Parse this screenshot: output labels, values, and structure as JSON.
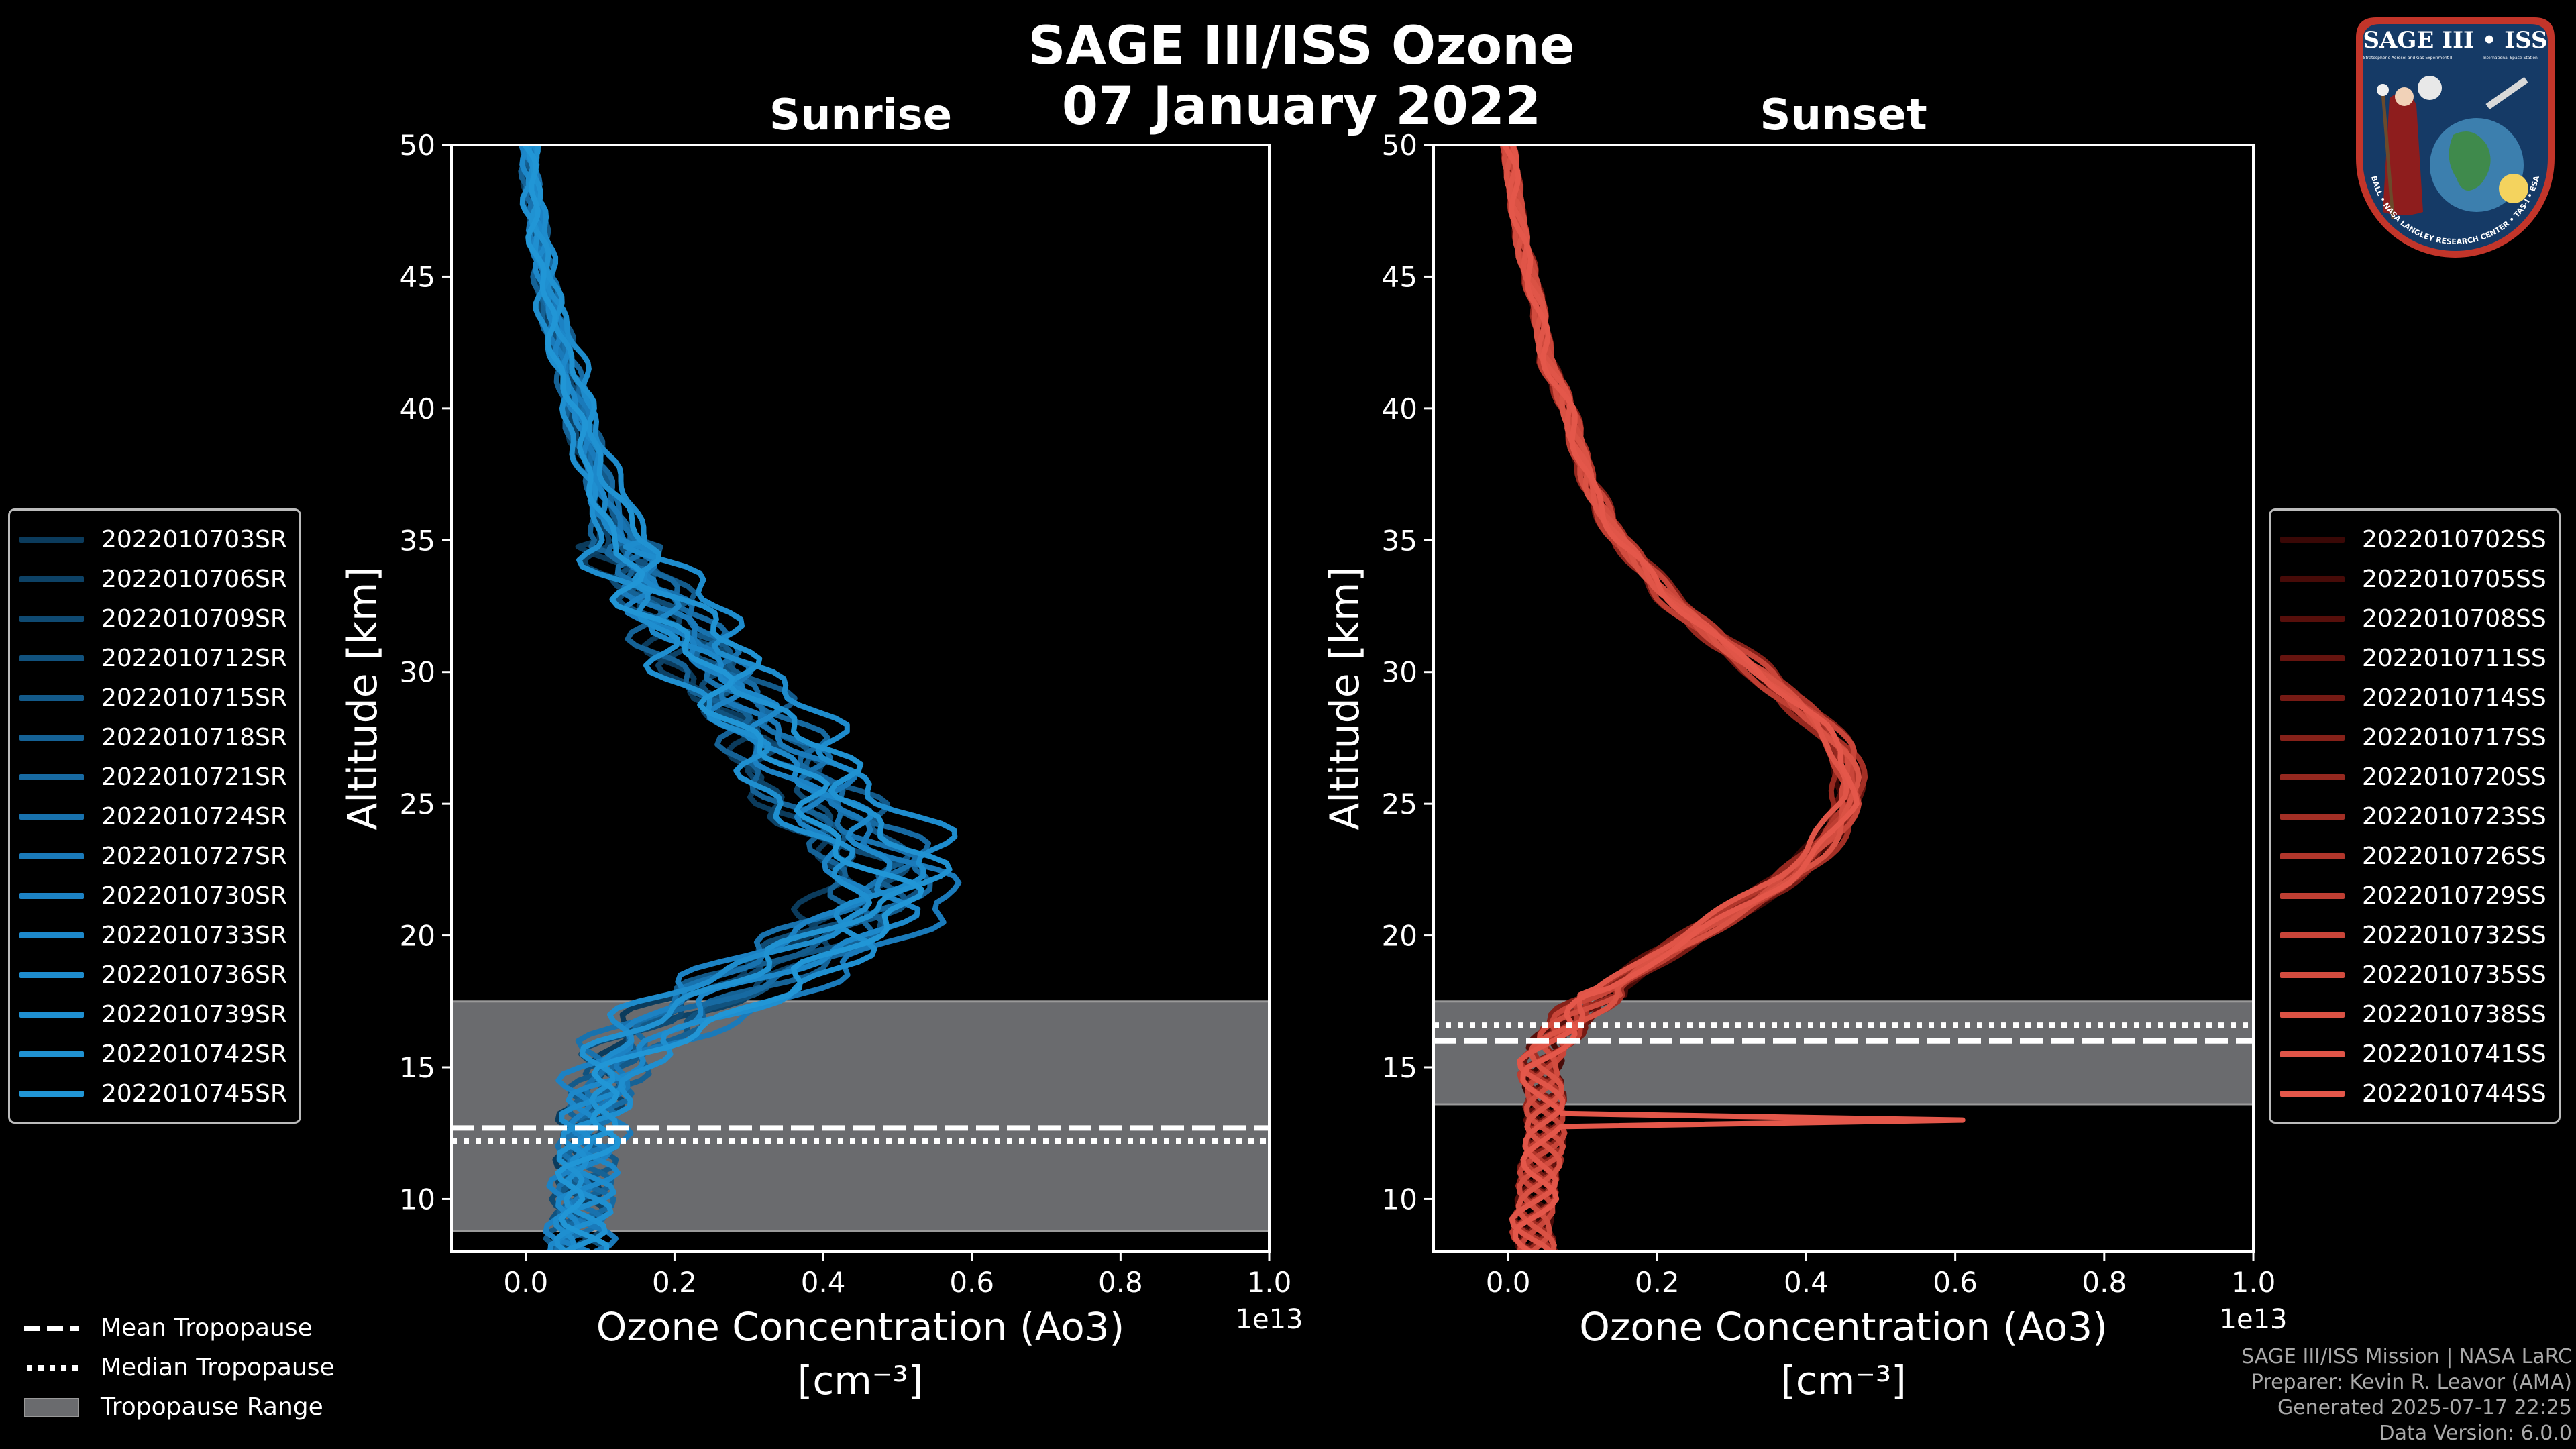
{
  "figure": {
    "title_line1": "SAGE III/ISS Ozone",
    "title_line2": "07 January 2022"
  },
  "colors": {
    "background": "#000000",
    "sunrise_line": "#1f8fd0",
    "sunset_line": "#e4574a",
    "tropopause_band": "#6a6b6e",
    "axis": "#ffffff"
  },
  "chart_data": [
    {
      "type": "line",
      "panel": "sunrise",
      "title": "Sunrise",
      "xlabel_line1": "Ozone Concentration (Ao3)",
      "xlabel_line2": "[cm⁻³]",
      "ylabel": "Altitude [km]",
      "x_offset_label": "1e13",
      "xlim": [
        -0.1,
        1.0
      ],
      "ylim": [
        8,
        50
      ],
      "xticks": [
        0.0,
        0.2,
        0.4,
        0.6,
        0.8,
        1.0
      ],
      "xtick_labels": [
        "0.0",
        "0.2",
        "0.4",
        "0.6",
        "0.8",
        "1.0"
      ],
      "yticks": [
        10,
        15,
        20,
        25,
        30,
        35,
        40,
        45,
        50
      ],
      "ytick_labels": [
        "10",
        "15",
        "20",
        "25",
        "30",
        "35",
        "40",
        "45",
        "50"
      ],
      "tropopause": {
        "range": [
          8.8,
          17.5
        ],
        "mean": 12.7,
        "median": 12.2
      },
      "base_profile": {
        "altitude": [
          8,
          9,
          10,
          11,
          12,
          13,
          14,
          15,
          16,
          17,
          18,
          19,
          20,
          21,
          22,
          23,
          24,
          25,
          26,
          27,
          28,
          29,
          30,
          31,
          32,
          33,
          34,
          35,
          36,
          37,
          38,
          40,
          42,
          44,
          46,
          48,
          50
        ],
        "ozone": [
          0.06,
          0.07,
          0.07,
          0.08,
          0.08,
          0.09,
          0.1,
          0.12,
          0.16,
          0.22,
          0.3,
          0.38,
          0.45,
          0.5,
          0.51,
          0.48,
          0.44,
          0.41,
          0.38,
          0.35,
          0.32,
          0.29,
          0.26,
          0.23,
          0.2,
          0.17,
          0.15,
          0.13,
          0.11,
          0.1,
          0.09,
          0.07,
          0.05,
          0.03,
          0.02,
          0.01,
          0.005
        ]
      },
      "series": [
        {
          "name": "2022010703SR",
          "color": "#0b3b5c",
          "scale": 0.82,
          "shift": 0.2
        },
        {
          "name": "2022010706SR",
          "color": "#0d4266",
          "scale": 0.88,
          "shift": -0.4
        },
        {
          "name": "2022010709SR",
          "color": "#0f4a72",
          "scale": 0.93,
          "shift": 0.5
        },
        {
          "name": "2022010712SR",
          "color": "#11527e",
          "scale": 0.97,
          "shift": -0.2
        },
        {
          "name": "2022010715SR",
          "color": "#135a8a",
          "scale": 1.02,
          "shift": 0.8
        },
        {
          "name": "2022010718SR",
          "color": "#156296",
          "scale": 0.9,
          "shift": -0.8
        },
        {
          "name": "2022010721SR",
          "color": "#176aa2",
          "scale": 1.06,
          "shift": 0.3
        },
        {
          "name": "2022010724SR",
          "color": "#1872ae",
          "scale": 0.95,
          "shift": 1.0
        },
        {
          "name": "2022010727SR",
          "color": "#1a7aba",
          "scale": 1.1,
          "shift": -0.5
        },
        {
          "name": "2022010730SR",
          "color": "#1c82c4",
          "scale": 0.86,
          "shift": 0.6
        },
        {
          "name": "2022010733SR",
          "color": "#1d88ca",
          "scale": 1.0,
          "shift": 0.0
        },
        {
          "name": "2022010736SR",
          "color": "#1e8ccd",
          "scale": 1.08,
          "shift": 1.4
        },
        {
          "name": "2022010739SR",
          "color": "#1f8fd0",
          "scale": 0.92,
          "shift": -1.1
        },
        {
          "name": "2022010742SR",
          "color": "#2092d2",
          "scale": 1.04,
          "shift": 0.9
        },
        {
          "name": "2022010745SR",
          "color": "#2196d6",
          "scale": 0.98,
          "shift": -0.6
        }
      ]
    },
    {
      "type": "line",
      "panel": "sunset",
      "title": "Sunset",
      "xlabel_line1": "Ozone Concentration (Ao3)",
      "xlabel_line2": "[cm⁻³]",
      "ylabel": "Altitude [km]",
      "x_offset_label": "1e13",
      "xlim": [
        -0.1,
        1.0
      ],
      "ylim": [
        8,
        50
      ],
      "xticks": [
        0.0,
        0.2,
        0.4,
        0.6,
        0.8,
        1.0
      ],
      "xtick_labels": [
        "0.0",
        "0.2",
        "0.4",
        "0.6",
        "0.8",
        "1.0"
      ],
      "yticks": [
        10,
        15,
        20,
        25,
        30,
        35,
        40,
        45,
        50
      ],
      "ytick_labels": [
        "10",
        "15",
        "20",
        "25",
        "30",
        "35",
        "40",
        "45",
        "50"
      ],
      "tropopause": {
        "range": [
          13.6,
          17.5
        ],
        "mean": 16.0,
        "median": 16.6
      },
      "base_profile": {
        "altitude": [
          8,
          9,
          10,
          11,
          12,
          13,
          14,
          15,
          16,
          17,
          18,
          19,
          20,
          21,
          22,
          23,
          24,
          25,
          26,
          27,
          28,
          29,
          30,
          31,
          32,
          33,
          34,
          35,
          36,
          37,
          38,
          40,
          42,
          44,
          46,
          48,
          50
        ],
        "ozone": [
          0.04,
          0.03,
          0.04,
          0.04,
          0.05,
          0.05,
          0.05,
          0.04,
          0.06,
          0.09,
          0.14,
          0.19,
          0.25,
          0.31,
          0.37,
          0.41,
          0.44,
          0.46,
          0.46,
          0.45,
          0.42,
          0.38,
          0.34,
          0.29,
          0.25,
          0.21,
          0.18,
          0.15,
          0.13,
          0.11,
          0.1,
          0.08,
          0.05,
          0.04,
          0.02,
          0.01,
          0.0
        ]
      },
      "spike": {
        "altitude": 13.0,
        "ozone": 0.61
      },
      "series": [
        {
          "name": "2022010702SS",
          "color": "#3a0806",
          "scale": 0.97,
          "shift": 0.1
        },
        {
          "name": "2022010705SS",
          "color": "#470b08",
          "scale": 1.0,
          "shift": -0.2
        },
        {
          "name": "2022010708SS",
          "color": "#570f0b",
          "scale": 0.98,
          "shift": 0.2
        },
        {
          "name": "2022010711SS",
          "color": "#66140f",
          "scale": 1.02,
          "shift": 0.0
        },
        {
          "name": "2022010714SS",
          "color": "#761a14",
          "scale": 0.99,
          "shift": -0.3
        },
        {
          "name": "2022010717SS",
          "color": "#862119",
          "scale": 1.01,
          "shift": 0.3
        },
        {
          "name": "2022010720SS",
          "color": "#95281f",
          "scale": 0.96,
          "shift": 0.0
        },
        {
          "name": "2022010723SS",
          "color": "#a32f25",
          "scale": 1.03,
          "shift": -0.1
        },
        {
          "name": "2022010726SS",
          "color": "#b1362b",
          "scale": 1.0,
          "shift": 0.2
        },
        {
          "name": "2022010729SS",
          "color": "#be3e32",
          "scale": 0.98,
          "shift": -0.2
        },
        {
          "name": "2022010732SS",
          "color": "#c94539",
          "scale": 1.02,
          "shift": 0.1
        },
        {
          "name": "2022010735SS",
          "color": "#d24c3f",
          "scale": 0.99,
          "shift": 0.0
        },
        {
          "name": "2022010738SS",
          "color": "#da5244",
          "scale": 1.01,
          "shift": -0.1
        },
        {
          "name": "2022010741SS",
          "color": "#e05548",
          "scale": 0.97,
          "shift": 0.2
        },
        {
          "name": "2022010744SS",
          "color": "#e4574a",
          "scale": 1.0,
          "shift": 0.0
        }
      ]
    }
  ],
  "tropopause_legend": {
    "mean": "Mean Tropopause",
    "median": "Median Tropopause",
    "range": "Tropopause Range"
  },
  "credits": {
    "line1": "SAGE III/ISS Mission | NASA LaRC",
    "line2": "Preparer: Kevin R. Leavor (AMA)",
    "line3": "Generated 2025-07-17 22:25",
    "line4": "Data Version: 6.0.0"
  },
  "badge": {
    "title": "SAGE III • ISS",
    "subtitle_left": "Stratospheric Aerosol and Gas Experiment III",
    "subtitle_right": "International Space Station",
    "ring_text": "BALL • NASA LANGLEY RESEARCH CENTER • TAS-I • ESA"
  }
}
